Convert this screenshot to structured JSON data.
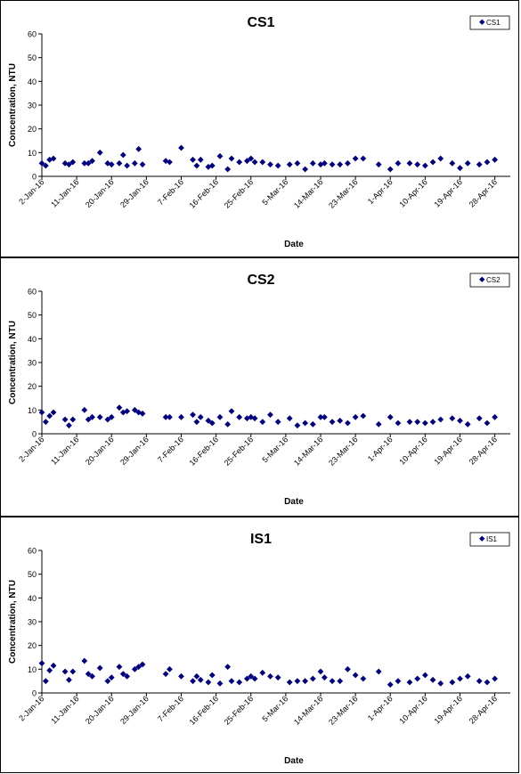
{
  "colors": {
    "marker": "#000080",
    "axis": "#000000"
  },
  "x_tick_labels": [
    "2-Jan-16",
    "11-Jan-16",
    "20-Jan-16",
    "29-Jan-16",
    "7-Feb-16",
    "16-Feb-16",
    "25-Feb-16",
    "5-Mar-16",
    "14-Mar-16",
    "23-Mar-16",
    "1-Apr-16",
    "10-Apr-16",
    "19-Apr-16",
    "28-Apr-16"
  ],
  "y_tick_labels": [
    "0",
    "10",
    "20",
    "30",
    "40",
    "50",
    "60"
  ],
  "chart_data": [
    {
      "type": "scatter",
      "title": "CS1",
      "xlabel": "Date",
      "ylabel": "Concentration, NTU",
      "ylim": [
        0,
        60
      ],
      "xlim": [
        "2-Jan-16",
        "2-May-16"
      ],
      "legend": "top-right",
      "series": [
        {
          "name": "CS1",
          "x": [
            "2-Jan-16",
            "3-Jan-16",
            "4-Jan-16",
            "5-Jan-16",
            "8-Jan-16",
            "9-Jan-16",
            "10-Jan-16",
            "13-Jan-16",
            "14-Jan-16",
            "15-Jan-16",
            "17-Jan-16",
            "19-Jan-16",
            "20-Jan-16",
            "22-Jan-16",
            "23-Jan-16",
            "24-Jan-16",
            "26-Jan-16",
            "27-Jan-16",
            "28-Jan-16",
            "3-Feb-16",
            "4-Feb-16",
            "7-Feb-16",
            "10-Feb-16",
            "11-Feb-16",
            "12-Feb-16",
            "14-Feb-16",
            "15-Feb-16",
            "17-Feb-16",
            "19-Feb-16",
            "20-Feb-16",
            "22-Feb-16",
            "24-Feb-16",
            "25-Feb-16",
            "26-Feb-16",
            "28-Feb-16",
            "1-Mar-16",
            "3-Mar-16",
            "6-Mar-16",
            "8-Mar-16",
            "10-Mar-16",
            "12-Mar-16",
            "14-Mar-16",
            "15-Mar-16",
            "17-Mar-16",
            "19-Mar-16",
            "21-Mar-16",
            "23-Mar-16",
            "25-Mar-16",
            "29-Mar-16",
            "1-Apr-16",
            "3-Apr-16",
            "6-Apr-16",
            "8-Apr-16",
            "10-Apr-16",
            "12-Apr-16",
            "14-Apr-16",
            "17-Apr-16",
            "19-Apr-16",
            "21-Apr-16",
            "24-Apr-16",
            "26-Apr-16",
            "28-Apr-16"
          ],
          "y": [
            5.5,
            4.5,
            7,
            7.5,
            5.5,
            5,
            6,
            5.5,
            5.5,
            6.5,
            10,
            5.5,
            5,
            5.5,
            9,
            4.5,
            5.5,
            11.5,
            5,
            6.5,
            6,
            12,
            7,
            4.5,
            7,
            4,
            4.5,
            8.5,
            3,
            7.5,
            6,
            6.5,
            7.5,
            6,
            6,
            5,
            4.5,
            5,
            5.5,
            3,
            5.5,
            5,
            5.5,
            5,
            5,
            5.5,
            7.5,
            7.5,
            5,
            3,
            5.5,
            5.5,
            5,
            4.5,
            6,
            7.5,
            5.5,
            3.5,
            5.5,
            5,
            6,
            7
          ]
        }
      ]
    },
    {
      "type": "scatter",
      "title": "CS2",
      "xlabel": "Date",
      "ylabel": "Concentration, NTU",
      "ylim": [
        0,
        60
      ],
      "xlim": [
        "2-Jan-16",
        "2-May-16"
      ],
      "legend": "top-right",
      "series": [
        {
          "name": "CS2",
          "x": [
            "2-Jan-16",
            "3-Jan-16",
            "4-Jan-16",
            "5-Jan-16",
            "8-Jan-16",
            "9-Jan-16",
            "10-Jan-16",
            "13-Jan-16",
            "14-Jan-16",
            "15-Jan-16",
            "17-Jan-16",
            "19-Jan-16",
            "20-Jan-16",
            "22-Jan-16",
            "23-Jan-16",
            "24-Jan-16",
            "26-Jan-16",
            "27-Jan-16",
            "28-Jan-16",
            "3-Feb-16",
            "4-Feb-16",
            "7-Feb-16",
            "10-Feb-16",
            "11-Feb-16",
            "12-Feb-16",
            "14-Feb-16",
            "15-Feb-16",
            "17-Feb-16",
            "19-Feb-16",
            "20-Feb-16",
            "22-Feb-16",
            "24-Feb-16",
            "25-Feb-16",
            "26-Feb-16",
            "28-Feb-16",
            "1-Mar-16",
            "3-Mar-16",
            "6-Mar-16",
            "8-Mar-16",
            "10-Mar-16",
            "12-Mar-16",
            "14-Mar-16",
            "15-Mar-16",
            "17-Mar-16",
            "19-Mar-16",
            "21-Mar-16",
            "23-Mar-16",
            "25-Mar-16",
            "29-Mar-16",
            "1-Apr-16",
            "3-Apr-16",
            "6-Apr-16",
            "8-Apr-16",
            "10-Apr-16",
            "12-Apr-16",
            "14-Apr-16",
            "17-Apr-16",
            "19-Apr-16",
            "21-Apr-16",
            "24-Apr-16",
            "26-Apr-16",
            "28-Apr-16"
          ],
          "y": [
            9,
            5,
            7.5,
            9,
            6,
            3.5,
            6,
            10,
            6,
            7,
            7,
            6,
            7,
            11,
            9,
            9.5,
            10,
            9,
            8.5,
            7,
            7,
            7,
            8,
            5,
            7,
            5.5,
            4.5,
            7,
            4,
            9.5,
            7,
            6.5,
            7,
            6.5,
            5,
            8,
            5,
            6.5,
            3.5,
            4.5,
            4,
            7,
            7,
            5,
            5.5,
            4.5,
            7,
            7.5,
            4,
            7,
            4.5,
            5,
            5,
            4.5,
            5,
            6,
            6.5,
            5.5,
            4,
            6.5,
            4.5,
            7
          ]
        }
      ]
    },
    {
      "type": "scatter",
      "title": "IS1",
      "xlabel": "Date",
      "ylabel": "Concentration, NTU",
      "ylim": [
        0,
        60
      ],
      "xlim": [
        "2-Jan-16",
        "2-May-16"
      ],
      "legend": "top-right",
      "series": [
        {
          "name": "IS1",
          "x": [
            "2-Jan-16",
            "3-Jan-16",
            "4-Jan-16",
            "5-Jan-16",
            "8-Jan-16",
            "9-Jan-16",
            "10-Jan-16",
            "13-Jan-16",
            "14-Jan-16",
            "15-Jan-16",
            "17-Jan-16",
            "19-Jan-16",
            "20-Jan-16",
            "22-Jan-16",
            "23-Jan-16",
            "24-Jan-16",
            "26-Jan-16",
            "27-Jan-16",
            "28-Jan-16",
            "3-Feb-16",
            "4-Feb-16",
            "7-Feb-16",
            "10-Feb-16",
            "11-Feb-16",
            "12-Feb-16",
            "14-Feb-16",
            "15-Feb-16",
            "17-Feb-16",
            "19-Feb-16",
            "20-Feb-16",
            "22-Feb-16",
            "24-Feb-16",
            "25-Feb-16",
            "26-Feb-16",
            "28-Feb-16",
            "1-Mar-16",
            "3-Mar-16",
            "6-Mar-16",
            "8-Mar-16",
            "10-Mar-16",
            "12-Mar-16",
            "14-Mar-16",
            "15-Mar-16",
            "17-Mar-16",
            "19-Mar-16",
            "21-Mar-16",
            "23-Mar-16",
            "25-Mar-16",
            "29-Mar-16",
            "1-Apr-16",
            "3-Apr-16",
            "6-Apr-16",
            "8-Apr-16",
            "10-Apr-16",
            "12-Apr-16",
            "14-Apr-16",
            "17-Apr-16",
            "19-Apr-16",
            "21-Apr-16",
            "24-Apr-16",
            "26-Apr-16",
            "28-Apr-16"
          ],
          "y": [
            12.5,
            5,
            9.5,
            11.5,
            9,
            5.5,
            9,
            13.5,
            8,
            7,
            10.5,
            5,
            6.5,
            11,
            8,
            7,
            10,
            11,
            12,
            8,
            10,
            7,
            5,
            7,
            5.5,
            4.5,
            7.5,
            4,
            11,
            5,
            4.5,
            6,
            7,
            6,
            8.5,
            7,
            6.5,
            4.5,
            5,
            5,
            6,
            9,
            6.5,
            5,
            5,
            10,
            7.5,
            6,
            9,
            3.5,
            5,
            4.5,
            6,
            7.5,
            5.5,
            4,
            4.5,
            6,
            7,
            5,
            4.5,
            6
          ]
        }
      ]
    }
  ]
}
